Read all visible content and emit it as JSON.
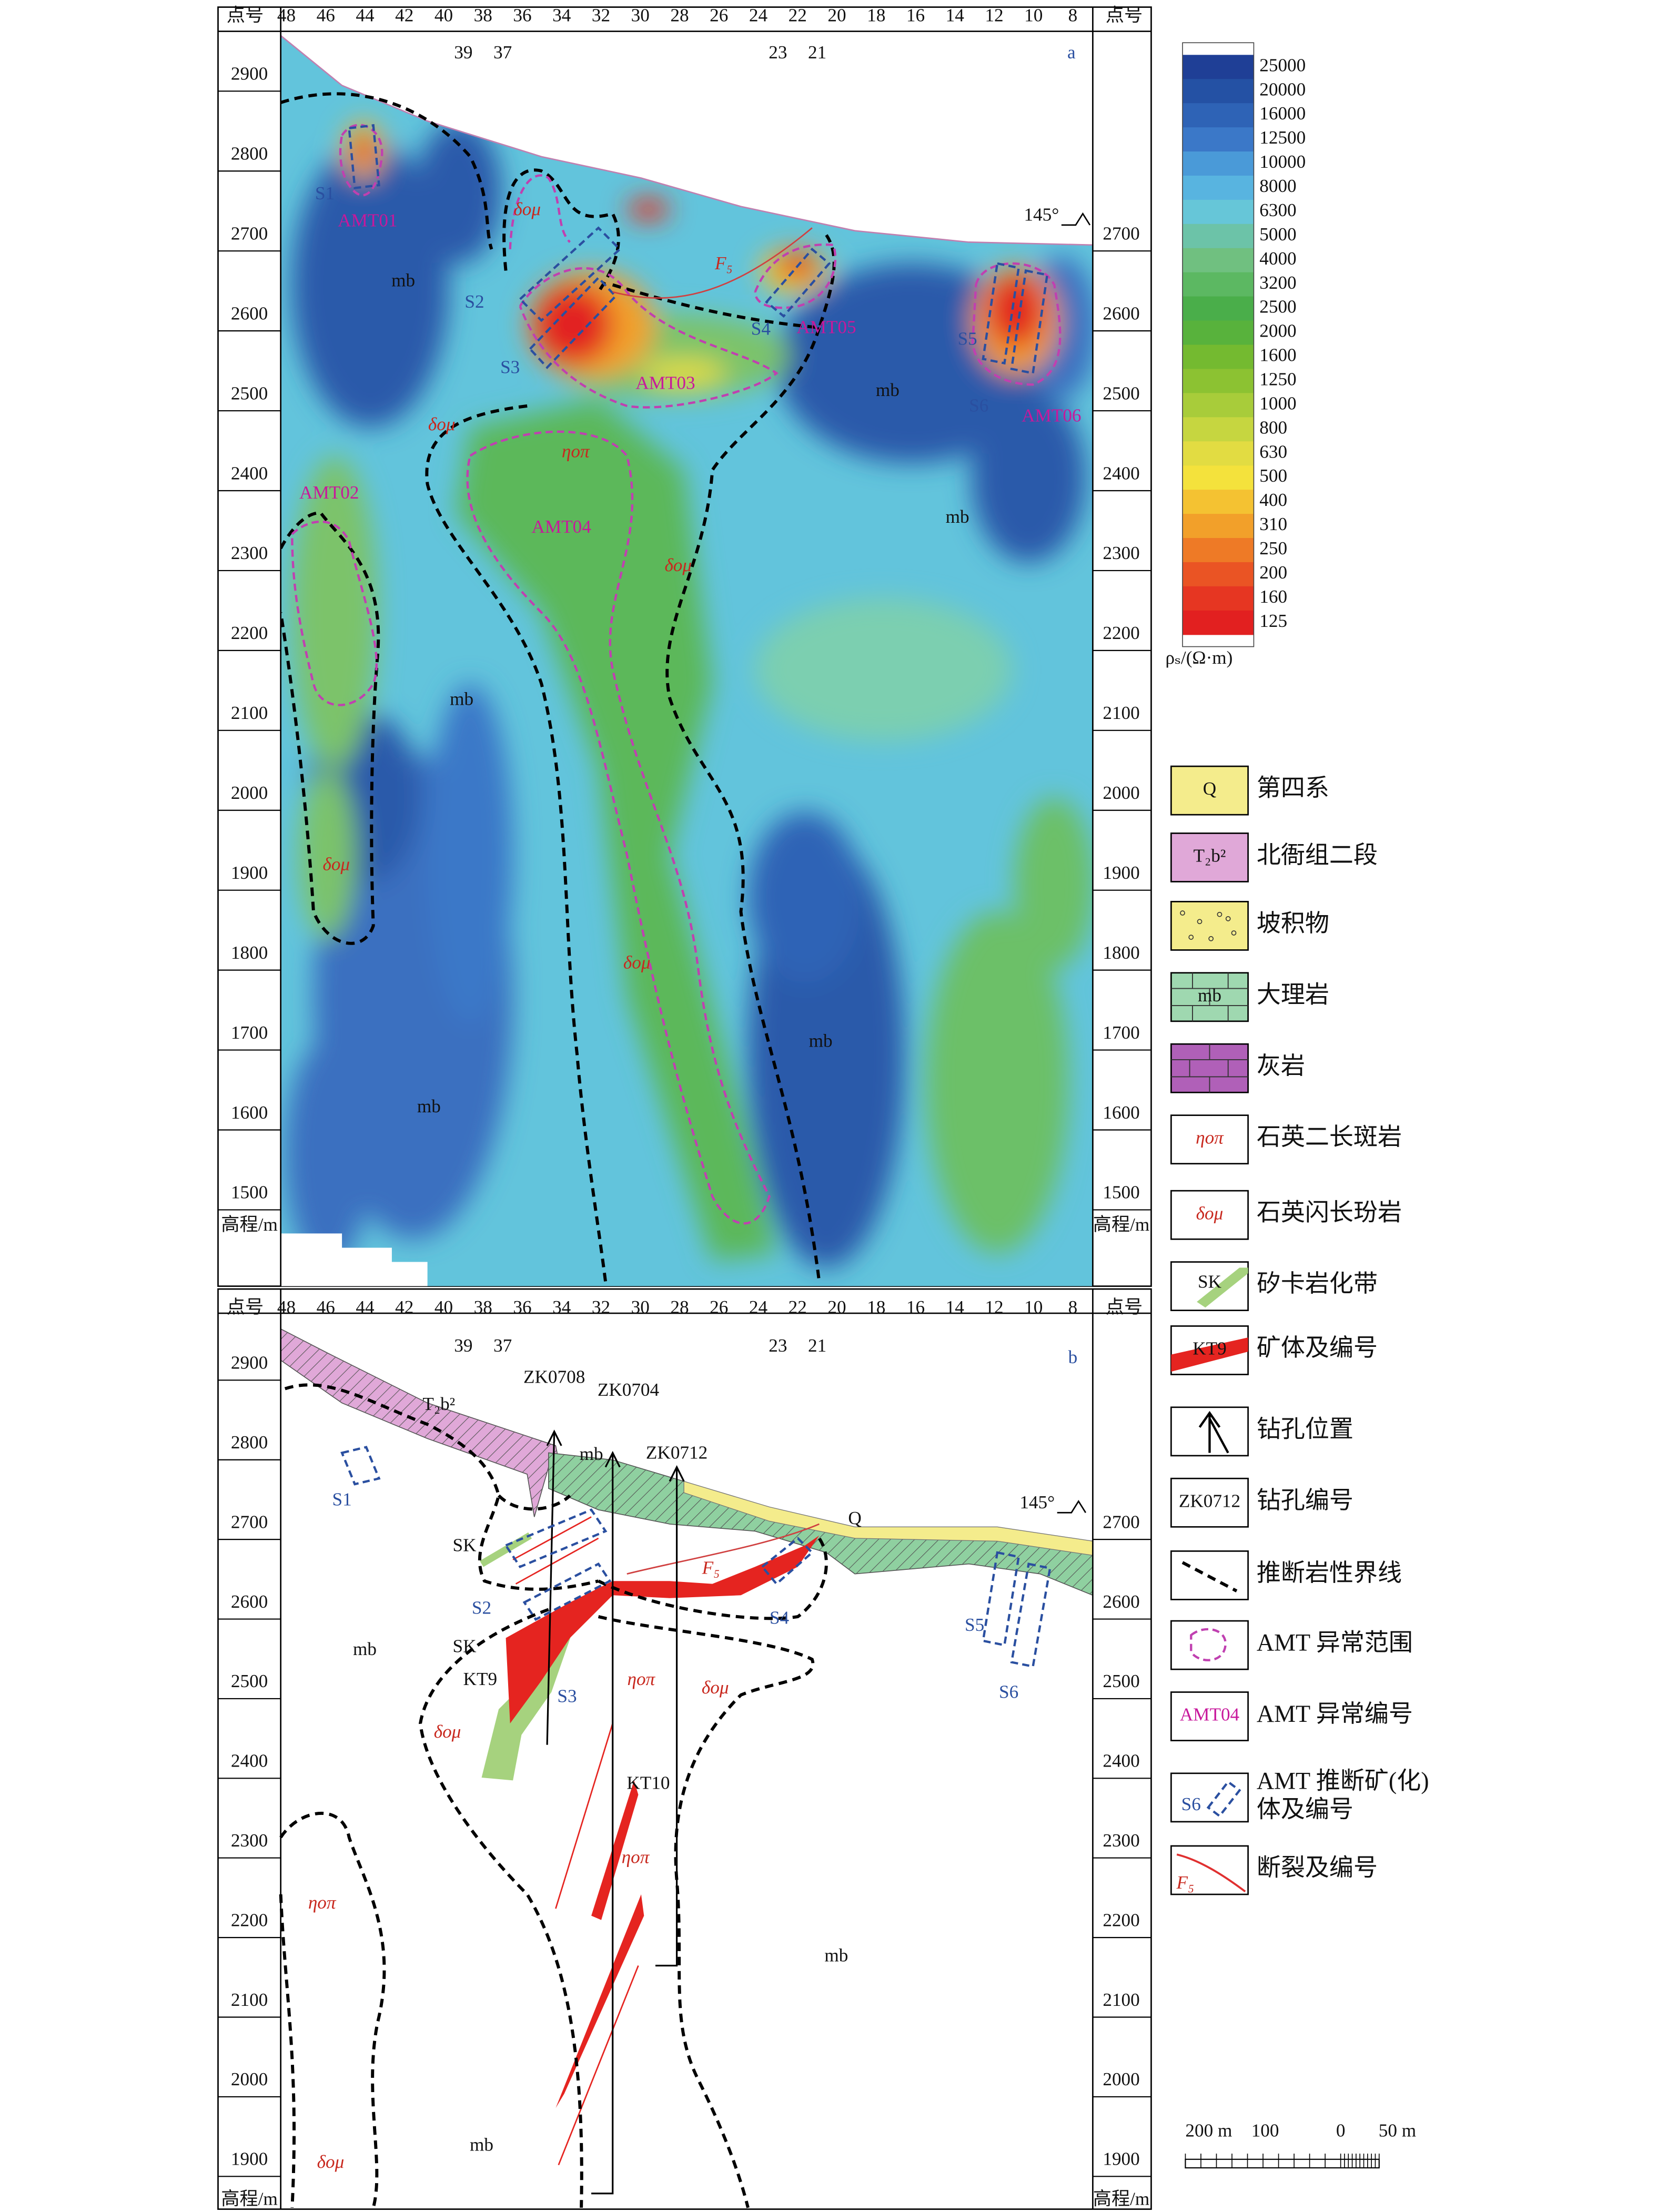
{
  "axes": {
    "top_title": "点号",
    "point_ticks": [
      48,
      46,
      44,
      42,
      40,
      38,
      36,
      34,
      32,
      30,
      28,
      26,
      24,
      22,
      20,
      18,
      16,
      14,
      12,
      10,
      8
    ],
    "line_ticks": [
      39,
      37,
      23,
      21
    ],
    "y_title": "高程/m"
  },
  "panel_a": {
    "label": "a",
    "left_ticks": [
      2900,
      2800,
      2700,
      2600,
      2500,
      2400,
      2300,
      2200,
      2100,
      2000,
      1900,
      1800,
      1700,
      1600,
      1500
    ],
    "right_ticks": [
      2700,
      2600,
      2500,
      2400,
      2300,
      2200,
      2100,
      2000,
      1900,
      1800,
      1700,
      1600,
      1500
    ],
    "annotations": [
      "S1",
      "AMT01",
      "mb",
      "δoμ",
      "S2",
      "S3",
      "AMT03",
      "F₅",
      "S4",
      "AMT05",
      "S5",
      "mb",
      "S6",
      "AMT06",
      "δoμ",
      "ηoπ",
      "AMT02",
      "AMT04",
      "δoμ",
      "mb",
      "mb",
      "δoμ",
      "δoμ",
      "mb",
      "mb",
      "145°"
    ]
  },
  "panel_b": {
    "label": "b",
    "left_ticks": [
      2900,
      2800,
      2700,
      2600,
      2500,
      2400,
      2300,
      2200,
      2100,
      2000,
      1900
    ],
    "right_ticks": [
      2700,
      2600,
      2500,
      2400,
      2300,
      2200,
      2100,
      2000,
      1900
    ],
    "annotations": [
      "T₂b²",
      "ZK0708",
      "ZK0704",
      "ZK0712",
      "mb",
      "S1",
      "SK",
      "Q",
      "145°",
      "F₅",
      "S2",
      "S4",
      "S5",
      "SK",
      "mb",
      "KT9",
      "S3",
      "ηoπ",
      "δoμ",
      "S6",
      "δoμ",
      "KT10",
      "ηoπ",
      "ηoπ",
      "mb",
      "mb",
      "δoμ"
    ]
  },
  "colorbar": {
    "labels": [
      25000,
      20000,
      16000,
      12500,
      10000,
      8000,
      6300,
      5000,
      4000,
      3200,
      2500,
      2000,
      1600,
      1250,
      1000,
      800,
      630,
      500,
      400,
      310,
      250,
      200,
      160,
      125
    ],
    "colors": [
      "#1f3f96",
      "#2451a4",
      "#2e63b6",
      "#3b78c8",
      "#4a9ad8",
      "#58b4e0",
      "#66c6d8",
      "#6cc3a8",
      "#70c080",
      "#5cb862",
      "#4aae4a",
      "#58b23c",
      "#74ba30",
      "#8cc232",
      "#a8cc3a",
      "#c6d640",
      "#e2dc42",
      "#f4e23c",
      "#f4c232",
      "#f2a02a",
      "#ee7a26",
      "#ea5424",
      "#e63622",
      "#e22020"
    ],
    "unit": "ρₛ/(Ω·m)"
  },
  "legend": [
    {
      "symbol": "Q",
      "label": "第四系"
    },
    {
      "symbol": "T₂b²",
      "label": "北衙组二段"
    },
    {
      "label": "坡积物"
    },
    {
      "symbol": "mb",
      "label": "大理岩"
    },
    {
      "label": "灰岩"
    },
    {
      "symbol": "ηoπ",
      "label": "石英二长斑岩"
    },
    {
      "symbol": "δoμ",
      "label": "石英闪长玢岩"
    },
    {
      "symbol": "SK",
      "label": "矽卡岩化带"
    },
    {
      "symbol": "KT9",
      "label": "矿体及编号"
    },
    {
      "label": "钻孔位置"
    },
    {
      "symbol": "ZK0712",
      "label": "钻孔编号"
    },
    {
      "label": "推断岩性界线"
    },
    {
      "label": "AMT 异常范围"
    },
    {
      "symbol": "AMT04",
      "label": "AMT 异常编号"
    },
    {
      "symbol": "S6",
      "label": [
        "AMT 推断矿(化)",
        "体及编号"
      ]
    },
    {
      "symbol": "F₅",
      "label": "断裂及编号"
    }
  ],
  "scale_bar": [
    "200 m",
    "100",
    "0",
    "50 m"
  ]
}
